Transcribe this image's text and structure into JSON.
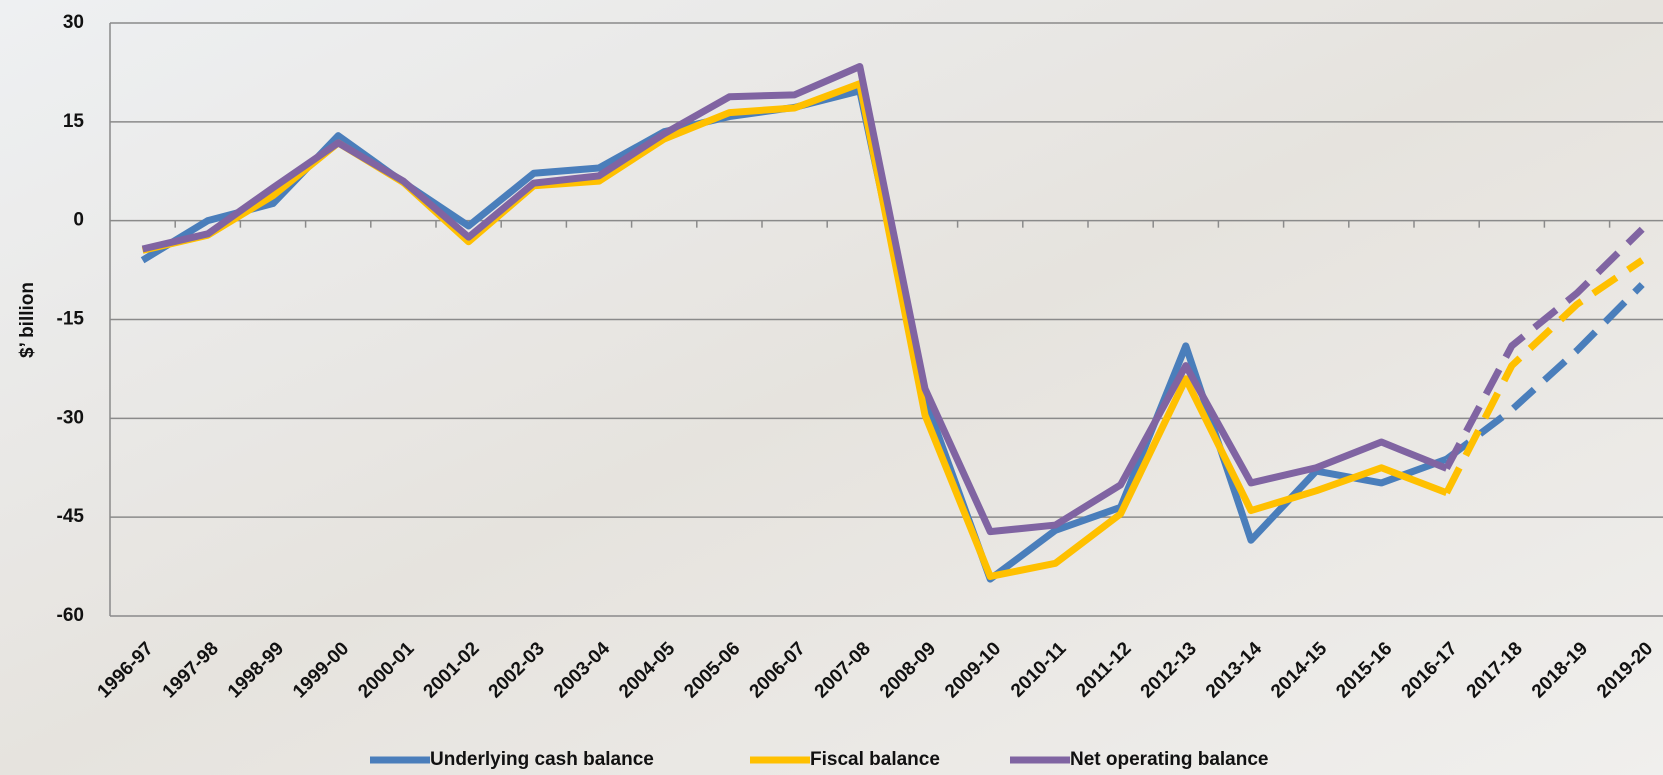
{
  "chart_data": {
    "type": "line",
    "y_label": "$’ billion",
    "categories": [
      "1996-97",
      "1997-98",
      "1998-99",
      "1999-00",
      "2000-01",
      "2001-02",
      "2002-03",
      "2003-04",
      "2004-05",
      "2005-06",
      "2006-07",
      "2007-08",
      "2008-09",
      "2009-10",
      "2010-11",
      "2011-12",
      "2012-13",
      "2013-14",
      "2014-15",
      "2015-16",
      "2016-17",
      "2017-18",
      "2018-19",
      "2019-20"
    ],
    "dash_from": 20,
    "series": [
      {
        "name": "Underlying cash balance",
        "color": "#4a7ebb",
        "values": [
          -6,
          0,
          2.6,
          12.9,
          5.8,
          -0.8,
          7.2,
          8,
          13.5,
          15.8,
          17.2,
          19.7,
          -27,
          -54.4,
          -47,
          -43.5,
          -19,
          -48.5,
          -38,
          -39.8,
          -36.2,
          -28.7,
          -19.7,
          -9.7
        ]
      },
      {
        "name": "Fiscal balance",
        "color": "#ffc000",
        "values": [
          -4.5,
          -2.2,
          3.8,
          11.8,
          5.8,
          -3.2,
          5.3,
          6,
          12.4,
          16.4,
          17.1,
          20.8,
          -29.5,
          -54,
          -52,
          -44.5,
          -24,
          -44,
          -41,
          -37.5,
          -41.3,
          -22,
          -12.7,
          -6
        ]
      },
      {
        "name": "Net operating balance",
        "color": "#8064a2",
        "values": [
          -4.3,
          -2,
          5,
          11.8,
          6,
          -2.5,
          5.7,
          6.8,
          13.2,
          18.8,
          19.1,
          23.4,
          -25.5,
          -47.2,
          -46.2,
          -40.1,
          -22,
          -39.8,
          -37.5,
          -33.6,
          -37.6,
          -19,
          -11,
          -1.3
        ]
      }
    ],
    "ylim": [
      -60,
      30
    ],
    "yticks": [
      -60,
      -45,
      -30,
      -15,
      0,
      15,
      30
    ],
    "grid": true,
    "legend": "bottom"
  }
}
